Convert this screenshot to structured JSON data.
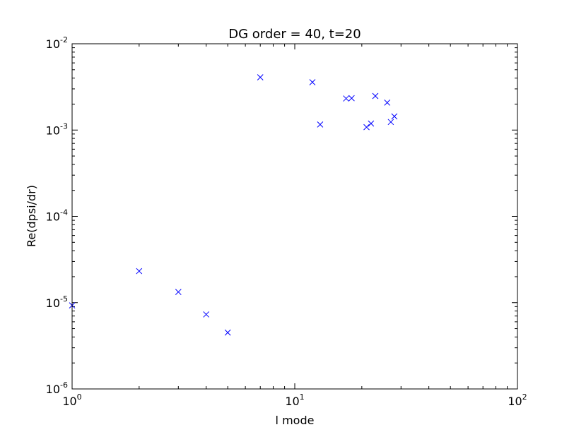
{
  "chart_data": {
    "type": "scatter",
    "title": "DG order = 40, t=20",
    "xlabel": "l mode",
    "ylabel": "Re(dpsi/dr)",
    "xscale": "log",
    "yscale": "log",
    "xlim": [
      1,
      100
    ],
    "ylim": [
      1e-06,
      0.01
    ],
    "grid": false,
    "legend": "none",
    "marker": "x",
    "marker_color": "#0000ff",
    "x_ticks": [
      {
        "value": 1,
        "base": "10",
        "exp": "0"
      },
      {
        "value": 10,
        "base": "10",
        "exp": "1"
      },
      {
        "value": 100,
        "base": "10",
        "exp": "2"
      }
    ],
    "y_ticks": [
      {
        "value": 1e-06,
        "base": "10",
        "exp": "-6"
      },
      {
        "value": 1e-05,
        "base": "10",
        "exp": "-5"
      },
      {
        "value": 0.0001,
        "base": "10",
        "exp": "-4"
      },
      {
        "value": 0.001,
        "base": "10",
        "exp": "-3"
      },
      {
        "value": 0.01,
        "base": "10",
        "exp": "-2"
      }
    ],
    "points": [
      {
        "x": 1,
        "y": 9.3e-06
      },
      {
        "x": 2,
        "y": 2.32e-05
      },
      {
        "x": 3,
        "y": 1.33e-05
      },
      {
        "x": 4,
        "y": 7.3e-06
      },
      {
        "x": 5,
        "y": 4.5e-06
      },
      {
        "x": 7,
        "y": 0.00409
      },
      {
        "x": 12,
        "y": 0.00358
      },
      {
        "x": 13,
        "y": 0.00116
      },
      {
        "x": 17,
        "y": 0.00232
      },
      {
        "x": 18,
        "y": 0.00234
      },
      {
        "x": 21,
        "y": 0.00108
      },
      {
        "x": 22,
        "y": 0.00119
      },
      {
        "x": 23,
        "y": 0.00248
      },
      {
        "x": 26,
        "y": 0.00208
      },
      {
        "x": 27,
        "y": 0.00124
      },
      {
        "x": 28,
        "y": 0.00144
      }
    ]
  }
}
